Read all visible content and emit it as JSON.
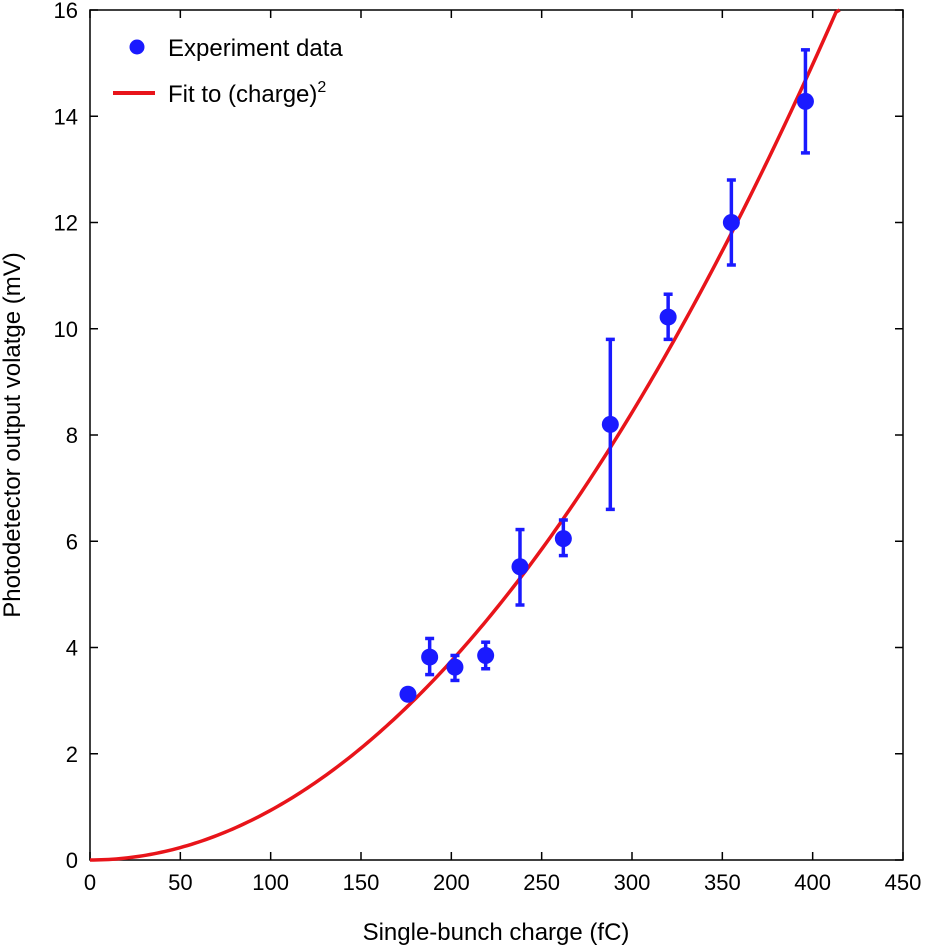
{
  "chart_data": {
    "type": "scatter",
    "title": "",
    "xlabel": "Single-bunch charge (fC)",
    "ylabel": "Photodetector output volatge (mV)",
    "xlim": [
      0,
      450
    ],
    "ylim": [
      0,
      16
    ],
    "xticks": [
      0,
      50,
      100,
      150,
      200,
      250,
      300,
      350,
      400,
      450
    ],
    "yticks": [
      0,
      2,
      4,
      6,
      8,
      10,
      12,
      14,
      16
    ],
    "grid": false,
    "legend_position": "top-left",
    "series": [
      {
        "name": "Experiment data",
        "kind": "points-with-error-bars",
        "color": "#1a1aff",
        "points": [
          {
            "x": 176,
            "y": 3.12,
            "err_low": 0.0,
            "err_high": 0.0
          },
          {
            "x": 188,
            "y": 3.82,
            "err_low": 0.33,
            "err_high": 0.35
          },
          {
            "x": 202,
            "y": 3.63,
            "err_low": 0.25,
            "err_high": 0.22
          },
          {
            "x": 219,
            "y": 3.85,
            "err_low": 0.25,
            "err_high": 0.25
          },
          {
            "x": 238,
            "y": 5.52,
            "err_low": 0.72,
            "err_high": 0.7
          },
          {
            "x": 262,
            "y": 6.05,
            "err_low": 0.32,
            "err_high": 0.35
          },
          {
            "x": 288,
            "y": 8.2,
            "err_low": 1.6,
            "err_high": 1.6
          },
          {
            "x": 320,
            "y": 10.22,
            "err_low": 0.42,
            "err_high": 0.43
          },
          {
            "x": 355,
            "y": 12.0,
            "err_low": 0.8,
            "err_high": 0.8
          },
          {
            "x": 396,
            "y": 14.28,
            "err_low": 0.97,
            "err_high": 0.97
          }
        ]
      },
      {
        "name": "Fit to (charge)",
        "name_superscript": "2",
        "kind": "quadratic-fit",
        "color": "#e8141a",
        "coefficient": 9.36e-05,
        "x_range": [
          0,
          415
        ]
      }
    ]
  }
}
